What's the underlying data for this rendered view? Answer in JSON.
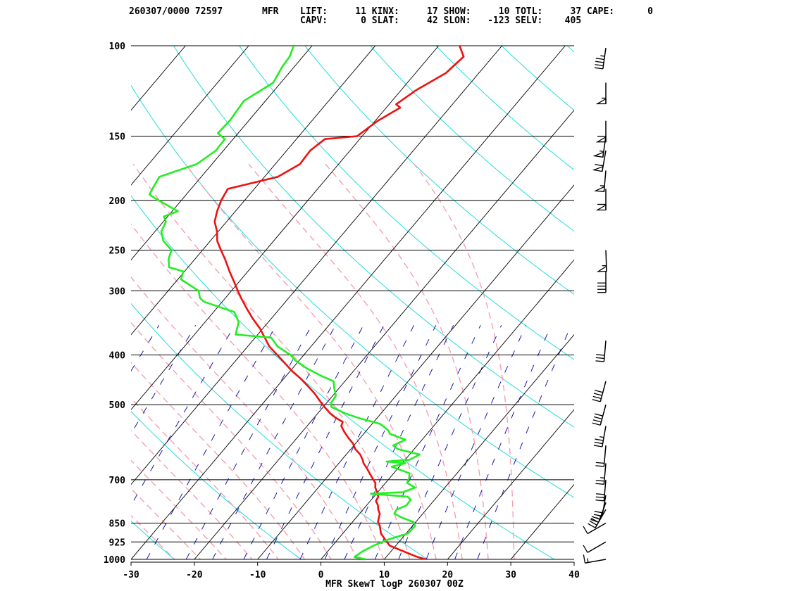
{
  "header": {
    "line1_left": "260307/0000 72597",
    "station": "MFR",
    "indices_line1": "LIFT:     11 KINX:     17 SHOW:     10 TOTL:     37 CAPE:      0",
    "indices_line2": "CAPV:      0 SLAT:     42 SLON:   -123 SELV:    405"
  },
  "chart_data": {
    "type": "line",
    "title": "MFR SkewT logP 260307 00Z",
    "xlabel": "",
    "ylabel": "",
    "x_ticks": [
      -30,
      -20,
      -10,
      0,
      10,
      20,
      30,
      40
    ],
    "y_ticks": [
      100,
      150,
      200,
      250,
      300,
      400,
      500,
      700,
      850,
      925,
      1000
    ],
    "xlim": [
      -30,
      40
    ],
    "ylim": [
      1000,
      100
    ],
    "y_scale": "log",
    "skew": true,
    "colors": {
      "temperature": "#ee1111",
      "dewpoint": "#22ee22",
      "isotherm": "#000000",
      "dry_adiabat": "#22dddd",
      "moist_adiabat": "#f5a0b0",
      "mixing_ratio": "#1818b0"
    },
    "series": [
      {
        "name": "",
        "role": "temperature",
        "points": [
          [
            1000,
            16.6
          ],
          [
            990,
            15.0
          ],
          [
            965,
            12.0
          ],
          [
            940,
            9.0
          ],
          [
            915,
            7.5
          ],
          [
            890,
            6.0
          ],
          [
            860,
            4.8
          ],
          [
            845,
            4.0
          ],
          [
            830,
            3.6
          ],
          [
            815,
            3.2
          ],
          [
            800,
            2.4
          ],
          [
            785,
            1.8
          ],
          [
            770,
            0.9
          ],
          [
            755,
            0.7
          ],
          [
            740,
            -0.1
          ],
          [
            725,
            -1.0
          ],
          [
            710,
            -1.6
          ],
          [
            695,
            -2.7
          ],
          [
            680,
            -3.8
          ],
          [
            665,
            -4.9
          ],
          [
            650,
            -6.1
          ],
          [
            640,
            -6.7
          ],
          [
            625,
            -7.8
          ],
          [
            610,
            -9.3
          ],
          [
            595,
            -10.4
          ],
          [
            580,
            -11.9
          ],
          [
            565,
            -13.3
          ],
          [
            550,
            -14.6
          ],
          [
            540,
            -14.9
          ],
          [
            530,
            -16.6
          ],
          [
            520,
            -18.0
          ],
          [
            505,
            -19.8
          ],
          [
            490,
            -21.5
          ],
          [
            475,
            -23.2
          ],
          [
            460,
            -25.2
          ],
          [
            445,
            -27.3
          ],
          [
            430,
            -29.7
          ],
          [
            415,
            -31.9
          ],
          [
            400,
            -34.2
          ],
          [
            385,
            -36.6
          ],
          [
            370,
            -38.5
          ],
          [
            355,
            -40.5
          ],
          [
            340,
            -42.9
          ],
          [
            325,
            -45.2
          ],
          [
            310,
            -47.5
          ],
          [
            300,
            -49.0
          ],
          [
            290,
            -50.5
          ],
          [
            275,
            -52.9
          ],
          [
            260,
            -55.3
          ],
          [
            250,
            -57.1
          ],
          [
            240,
            -58.9
          ],
          [
            230,
            -60.2
          ],
          [
            220,
            -61.9
          ],
          [
            210,
            -62.9
          ],
          [
            200,
            -63.7
          ],
          [
            190,
            -64.2
          ],
          [
            180,
            -57.9
          ],
          [
            170,
            -56.1
          ],
          [
            160,
            -56.3
          ],
          [
            152,
            -55.5
          ],
          [
            150,
            -50.8
          ],
          [
            140,
            -49.6
          ],
          [
            132,
            -47.8
          ],
          [
            130,
            -48.9
          ],
          [
            122,
            -47.6
          ],
          [
            113,
            -45.2
          ],
          [
            105,
            -44.6
          ],
          [
            100,
            -46.7
          ]
        ]
      },
      {
        "name": "",
        "role": "dewpoint",
        "points": [
          [
            1000,
            7.1
          ],
          [
            990,
            5.0
          ],
          [
            965,
            5.5
          ],
          [
            940,
            6.5
          ],
          [
            915,
            8.0
          ],
          [
            890,
            10.3
          ],
          [
            860,
            10.4
          ],
          [
            845,
            9.5
          ],
          [
            830,
            7.3
          ],
          [
            815,
            5.5
          ],
          [
            800,
            5.3
          ],
          [
            785,
            6.3
          ],
          [
            765,
            6.2
          ],
          [
            755,
            5.3
          ],
          [
            745,
            -0.9
          ],
          [
            740,
            4.0
          ],
          [
            725,
            5.3
          ],
          [
            710,
            3.4
          ],
          [
            695,
            3.1
          ],
          [
            680,
            2.5
          ],
          [
            660,
            -1.2
          ],
          [
            650,
            0.5
          ],
          [
            645,
            -2.7
          ],
          [
            640,
            0.7
          ],
          [
            625,
            1.6
          ],
          [
            610,
            -2.6
          ],
          [
            600,
            -3.8
          ],
          [
            585,
            -2.6
          ],
          [
            570,
            -5.8
          ],
          [
            560,
            -6.7
          ],
          [
            545,
            -8.7
          ],
          [
            530,
            -13.1
          ],
          [
            520,
            -15.6
          ],
          [
            505,
            -18.7
          ],
          [
            495,
            -19.3
          ],
          [
            480,
            -19.5
          ],
          [
            465,
            -20.7
          ],
          [
            450,
            -21.8
          ],
          [
            440,
            -24.3
          ],
          [
            425,
            -27.7
          ],
          [
            410,
            -30.6
          ],
          [
            400,
            -32.1
          ],
          [
            385,
            -35.3
          ],
          [
            370,
            -37.5
          ],
          [
            365,
            -43.5
          ],
          [
            345,
            -44.7
          ],
          [
            330,
            -46.7
          ],
          [
            315,
            -52.9
          ],
          [
            310,
            -54.0
          ],
          [
            300,
            -55.2
          ],
          [
            285,
            -59.5
          ],
          [
            275,
            -60.2
          ],
          [
            270,
            -63.0
          ],
          [
            260,
            -64.2
          ],
          [
            250,
            -64.9
          ],
          [
            240,
            -67.4
          ],
          [
            230,
            -69.0
          ],
          [
            220,
            -69.6
          ],
          [
            215,
            -70.6
          ],
          [
            210,
            -69.1
          ],
          [
            200,
            -73.6
          ],
          [
            195,
            -75.8
          ],
          [
            190,
            -76.1
          ],
          [
            180,
            -76.6
          ],
          [
            170,
            -72.4
          ],
          [
            160,
            -71.2
          ],
          [
            152,
            -71.3
          ],
          [
            148,
            -73.2
          ],
          [
            140,
            -73.0
          ],
          [
            128,
            -73.4
          ],
          [
            118,
            -71.2
          ],
          [
            110,
            -71.9
          ],
          [
            105,
            -72.1
          ],
          [
            100,
            -72.9
          ]
        ]
      }
    ],
    "winds": [
      {
        "p": 1000,
        "dir": 260,
        "spd": 15
      },
      {
        "p": 925,
        "dir": 240,
        "spd": 10
      },
      {
        "p": 850,
        "dir": 240,
        "spd": 10
      },
      {
        "p": 800,
        "dir": 210,
        "spd": 35
      },
      {
        "p": 775,
        "dir": 200,
        "spd": 25
      },
      {
        "p": 750,
        "dir": 190,
        "spd": 20
      },
      {
        "p": 700,
        "dir": 185,
        "spd": 30
      },
      {
        "p": 650,
        "dir": 185,
        "spd": 25
      },
      {
        "p": 600,
        "dir": 185,
        "spd": 20
      },
      {
        "p": 550,
        "dir": 190,
        "spd": 35
      },
      {
        "p": 500,
        "dir": 195,
        "spd": 40
      },
      {
        "p": 450,
        "dir": 195,
        "spd": 40
      },
      {
        "p": 375,
        "dir": 185,
        "spd": 30
      },
      {
        "p": 275,
        "dir": 180,
        "spd": 40
      },
      {
        "p": 250,
        "dir": 178,
        "spd": 55
      },
      {
        "p": 190,
        "dir": 180,
        "spd": 60
      },
      {
        "p": 175,
        "dir": 185,
        "spd": 55
      },
      {
        "p": 160,
        "dir": 190,
        "spd": 60
      },
      {
        "p": 150,
        "dir": 188,
        "spd": 55
      },
      {
        "p": 140,
        "dir": 180,
        "spd": 60
      },
      {
        "p": 118,
        "dir": 180,
        "spd": 55
      },
      {
        "p": 101,
        "dir": 188,
        "spd": 45
      }
    ]
  }
}
